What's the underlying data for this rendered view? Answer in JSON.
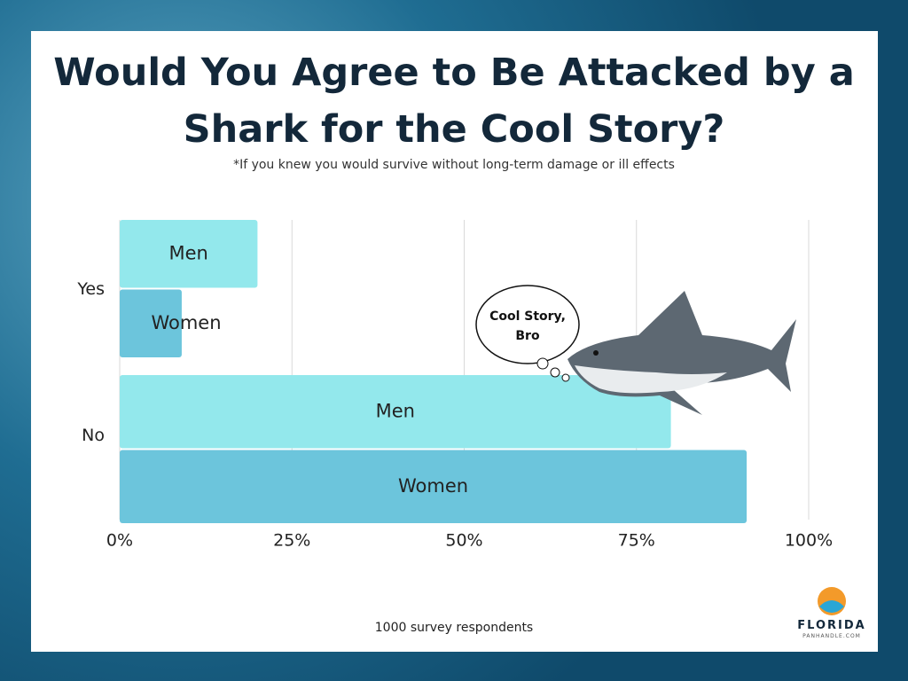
{
  "chart_data": {
    "type": "hbar",
    "title": "Would You Agree to Be Attacked by a Shark for the Cool Story?",
    "subtitle": "*If you knew you would survive without long-term damage or ill effects",
    "categories": [
      "Yes",
      "No"
    ],
    "series": [
      {
        "name": "Men",
        "color": "#93e8ec",
        "values": [
          20,
          80
        ]
      },
      {
        "name": "Women",
        "color": "#6cc5dc",
        "values": [
          9,
          91
        ]
      }
    ],
    "xlim": [
      0,
      100
    ],
    "xticks": [
      {
        "value": 0,
        "label": "0%"
      },
      {
        "value": 25,
        "label": "25%"
      },
      {
        "value": 50,
        "label": "50%"
      },
      {
        "value": 75,
        "label": "75%"
      },
      {
        "value": 100,
        "label": "100%"
      }
    ],
    "grid": true,
    "annotation": "Cool Story, Bro",
    "footnote": "1000 survey respondents"
  },
  "logo": {
    "name": "FLORIDA",
    "sub": "PANHANDLE.COM"
  }
}
